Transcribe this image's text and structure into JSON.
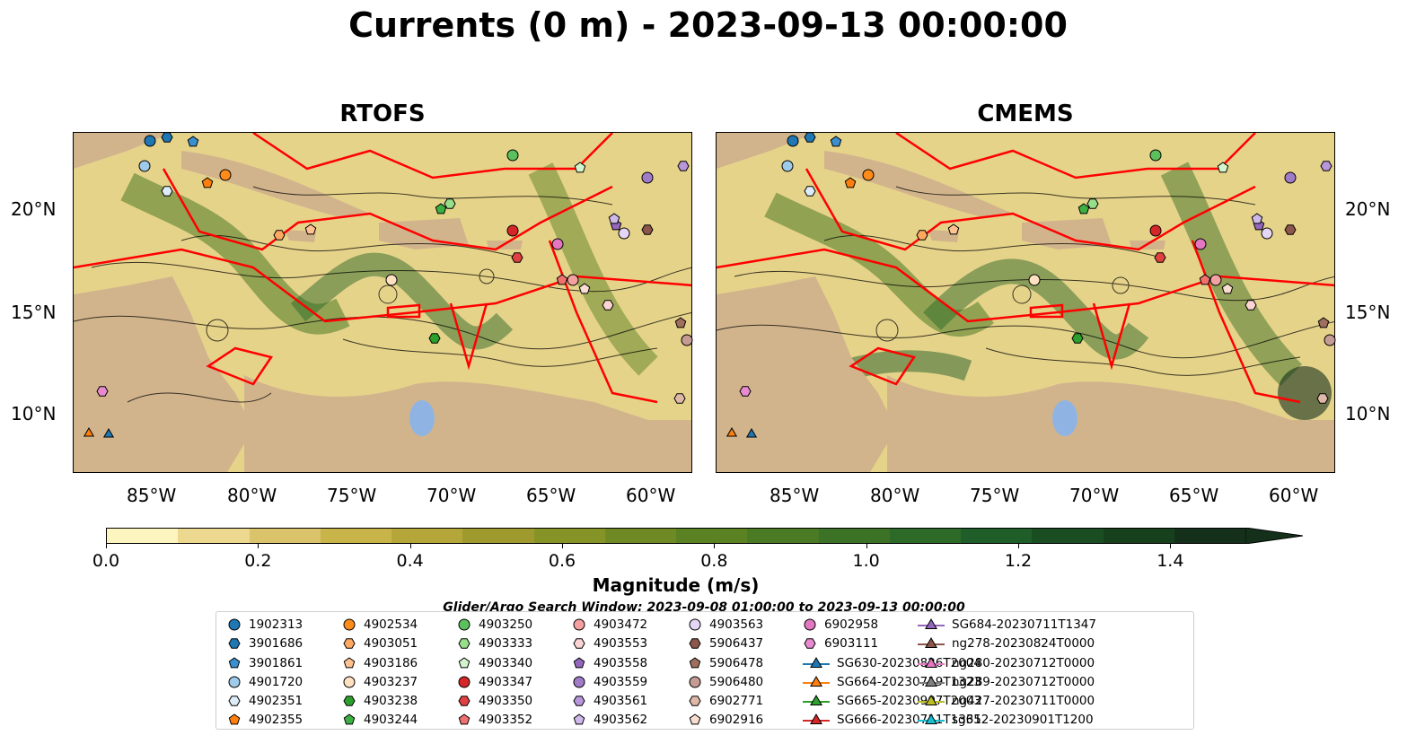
{
  "title": "Currents (0 m) - 2023-09-13 00:00:00",
  "panels": [
    {
      "title": "RTOFS"
    },
    {
      "title": "CMEMS"
    }
  ],
  "x_ticks": [
    "85°W",
    "80°W",
    "75°W",
    "70°W",
    "65°W",
    "60°W"
  ],
  "y_ticks": [
    "20°N",
    "15°N",
    "10°N"
  ],
  "colorbar": {
    "label": "Magnitude (m/s)",
    "ticks": [
      "0.0",
      "0.2",
      "0.4",
      "0.6",
      "0.8",
      "1.0",
      "1.2",
      "1.4"
    ],
    "range": [
      0.0,
      1.5
    ],
    "colors": [
      "#fdf5c0",
      "#ecd88f",
      "#dbc36b",
      "#c9b44a",
      "#b5a63a",
      "#9e9a2e",
      "#869427",
      "#6f8a24",
      "#5a8223",
      "#4a7a24",
      "#3b7226",
      "#2d6a28",
      "#1f5e28",
      "#1a4e22",
      "#17401c",
      "#14301a"
    ],
    "extend": "max"
  },
  "search_window": "Glider/Argo Search Window: 2023-09-08 01:00:00 to 2023-09-13 00:00:00",
  "legend": {
    "items": [
      {
        "label": "1902313",
        "marker": "circle",
        "color": "#1f77b4"
      },
      {
        "label": "3901686",
        "marker": "hexagon",
        "color": "#1f77b4"
      },
      {
        "label": "3901861",
        "marker": "pentagon",
        "color": "#3a8fd0"
      },
      {
        "label": "4901720",
        "marker": "circle",
        "color": "#9fcbea"
      },
      {
        "label": "4902351",
        "marker": "hexagon",
        "color": "#dcecf8"
      },
      {
        "label": "4902355",
        "marker": "pentagon",
        "color": "#ff7f0e"
      },
      {
        "label": "4902534",
        "marker": "circle",
        "color": "#ff8c1a"
      },
      {
        "label": "4903051",
        "marker": "hexagon",
        "color": "#ffa860"
      },
      {
        "label": "4903186",
        "marker": "pentagon",
        "color": "#ffc290"
      },
      {
        "label": "4903237",
        "marker": "circle",
        "color": "#ffe0c0"
      },
      {
        "label": "4903238",
        "marker": "hexagon",
        "color": "#2ca02c"
      },
      {
        "label": "4903244",
        "marker": "pentagon",
        "color": "#3cb043"
      },
      {
        "label": "4903250",
        "marker": "circle",
        "color": "#5cc15c"
      },
      {
        "label": "4903333",
        "marker": "hexagon",
        "color": "#98df8a"
      },
      {
        "label": "4903340",
        "marker": "pentagon",
        "color": "#d4f5cc"
      },
      {
        "label": "4903347",
        "marker": "circle",
        "color": "#d62728"
      },
      {
        "label": "4903350",
        "marker": "hexagon",
        "color": "#e04040"
      },
      {
        "label": "4903352",
        "marker": "pentagon",
        "color": "#f07070"
      },
      {
        "label": "4903472",
        "marker": "circle",
        "color": "#f4a0a0"
      },
      {
        "label": "4903553",
        "marker": "hexagon",
        "color": "#fcd4d4"
      },
      {
        "label": "4903558",
        "marker": "pentagon",
        "color": "#9467bd"
      },
      {
        "label": "4903559",
        "marker": "circle",
        "color": "#a07cc8"
      },
      {
        "label": "4903561",
        "marker": "hexagon",
        "color": "#b796d9"
      },
      {
        "label": "4903562",
        "marker": "pentagon",
        "color": "#cfb8ea"
      },
      {
        "label": "4903563",
        "marker": "circle",
        "color": "#e6d6f6"
      },
      {
        "label": "5906437",
        "marker": "hexagon",
        "color": "#8c564b"
      },
      {
        "label": "5906478",
        "marker": "pentagon",
        "color": "#a0705e"
      },
      {
        "label": "5906480",
        "marker": "circle",
        "color": "#c49c94"
      },
      {
        "label": "6902771",
        "marker": "hexagon",
        "color": "#e0b8a8"
      },
      {
        "label": "6902916",
        "marker": "pentagon",
        "color": "#f8ddd0"
      },
      {
        "label": "6902958",
        "marker": "circle",
        "color": "#e377c2"
      },
      {
        "label": "6903111",
        "marker": "hexagon",
        "color": "#e88ad0"
      },
      {
        "label": "SG630-20230826T2004",
        "marker": "triangle",
        "color": "#1f77b4"
      },
      {
        "label": "SG664-20230719T1323",
        "marker": "triangle",
        "color": "#ff7f0e"
      },
      {
        "label": "SG665-20230907T2003",
        "marker": "triangle",
        "color": "#2ca02c"
      },
      {
        "label": "SG666-20230711T1331",
        "marker": "triangle",
        "color": "#d62728"
      },
      {
        "label": "SG684-20230711T1347",
        "marker": "triangle",
        "color": "#9467bd"
      },
      {
        "label": "ng278-20230824T0000",
        "marker": "triangle",
        "color": "#8c564b"
      },
      {
        "label": "ng280-20230712T0000",
        "marker": "triangle",
        "color": "#e377c2"
      },
      {
        "label": "ng289-20230712T0000",
        "marker": "triangle",
        "color": "#7f7f7f"
      },
      {
        "label": "ng427-20230711T0000",
        "marker": "triangle",
        "color": "#bcbd22"
      },
      {
        "label": "sg652-20230901T1200",
        "marker": "triangle",
        "color": "#17becf"
      }
    ]
  },
  "map_colors": {
    "land": "#d2b48c",
    "lake": "#8fb4e3",
    "eez_boundary": "#ff0000",
    "streamline": "#000000"
  }
}
